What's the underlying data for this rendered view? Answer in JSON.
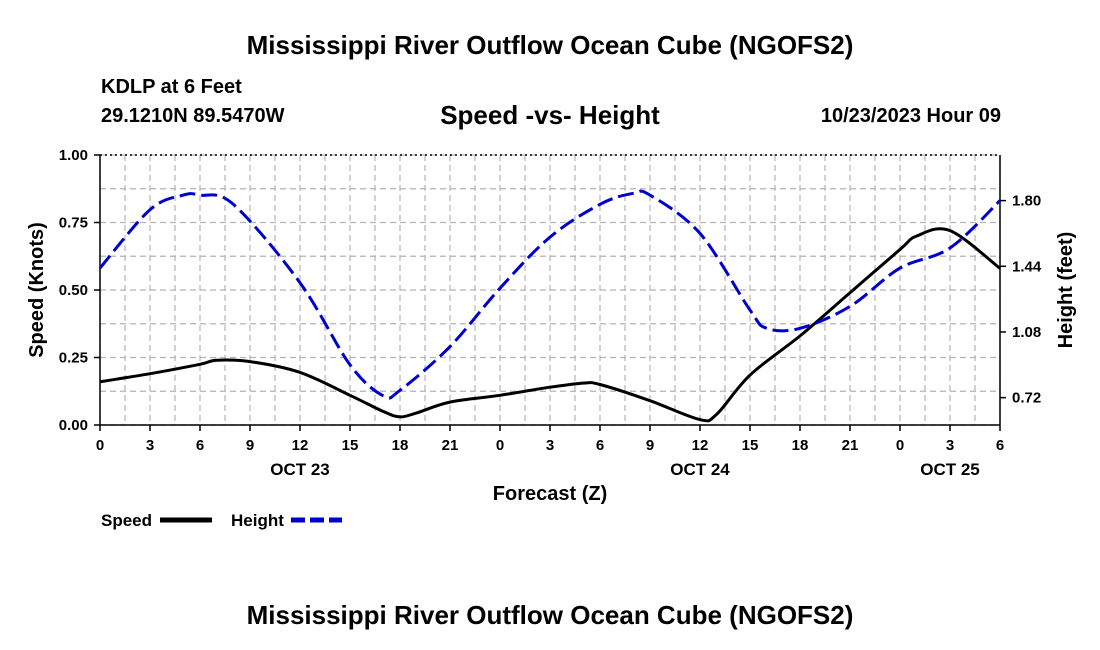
{
  "header": {
    "title": "Mississippi River Outflow Ocean Cube (NGOFS2)",
    "station": "KDLP at 6 Feet",
    "coords": "29.1210N  89.5470W",
    "subtitle": "Speed -vs- Height",
    "datetime": "10/23/2023 Hour 09"
  },
  "footer": {
    "title": "Mississippi River Outflow Ocean Cube (NGOFS2)"
  },
  "colors": {
    "speed": "#000000",
    "height": "#0000cc",
    "grid": "#b4b4b4"
  },
  "chart_data": {
    "type": "line",
    "title": "Speed -vs- Height",
    "xlabel": "Forecast (Z)",
    "ylabel": "Speed (Knots)",
    "y2label": "Height (feet)",
    "xlim": [
      0,
      54
    ],
    "ylim": [
      0,
      1
    ],
    "y2lim": [
      0.57,
      2.05
    ],
    "xtick_values": [
      0,
      3,
      6,
      9,
      12,
      15,
      18,
      21,
      24,
      27,
      30,
      33,
      36,
      39,
      42,
      45,
      48,
      51,
      54
    ],
    "xtick_labels": [
      "0",
      "3",
      "6",
      "9",
      "12",
      "15",
      "18",
      "21",
      "0",
      "3",
      "6",
      "9",
      "12",
      "15",
      "18",
      "21",
      "0",
      "3",
      "6"
    ],
    "date_labels": [
      {
        "x": 12,
        "label": "OCT 23"
      },
      {
        "x": 36,
        "label": "OCT 24"
      },
      {
        "x": 51,
        "label": "OCT 25"
      }
    ],
    "ytick_values": [
      0,
      0.25,
      0.5,
      0.75,
      1.0
    ],
    "ytick_labels": [
      "0.00",
      "0.25",
      "0.50",
      "0.75",
      "1.00"
    ],
    "y2tick_values": [
      0.72,
      1.08,
      1.44,
      1.8
    ],
    "y2tick_labels": [
      "0.72",
      "1.08",
      "1.44",
      "1.80"
    ],
    "series": [
      {
        "name": "Speed",
        "axis": "left",
        "x": [
          0,
          3,
          6,
          7,
          9,
          12,
          15,
          17,
          18,
          19,
          21,
          24,
          27,
          29,
          30,
          33,
          36,
          37,
          39,
          42,
          45,
          48,
          49,
          51,
          54
        ],
        "values": [
          0.16,
          0.19,
          0.225,
          0.24,
          0.235,
          0.195,
          0.11,
          0.05,
          0.03,
          0.045,
          0.085,
          0.11,
          0.14,
          0.155,
          0.15,
          0.09,
          0.02,
          0.04,
          0.185,
          0.33,
          0.49,
          0.65,
          0.7,
          0.72,
          0.58
        ]
      },
      {
        "name": "Height",
        "axis": "right",
        "x": [
          0,
          3,
          5,
          6,
          8,
          12,
          15,
          17,
          18,
          21,
          24,
          27,
          30,
          32,
          33,
          36,
          39,
          40,
          42,
          45,
          48,
          51,
          54
        ],
        "values": [
          1.43,
          1.75,
          1.83,
          1.83,
          1.78,
          1.35,
          0.9,
          0.73,
          0.76,
          1.0,
          1.32,
          1.6,
          1.78,
          1.84,
          1.83,
          1.62,
          1.2,
          1.1,
          1.1,
          1.22,
          1.43,
          1.54,
          1.8
        ]
      }
    ],
    "legend": [
      {
        "label": "Speed",
        "series": "Speed"
      },
      {
        "label": "Height",
        "series": "Height"
      }
    ],
    "legend_position": "bottom-left",
    "grid": true
  }
}
